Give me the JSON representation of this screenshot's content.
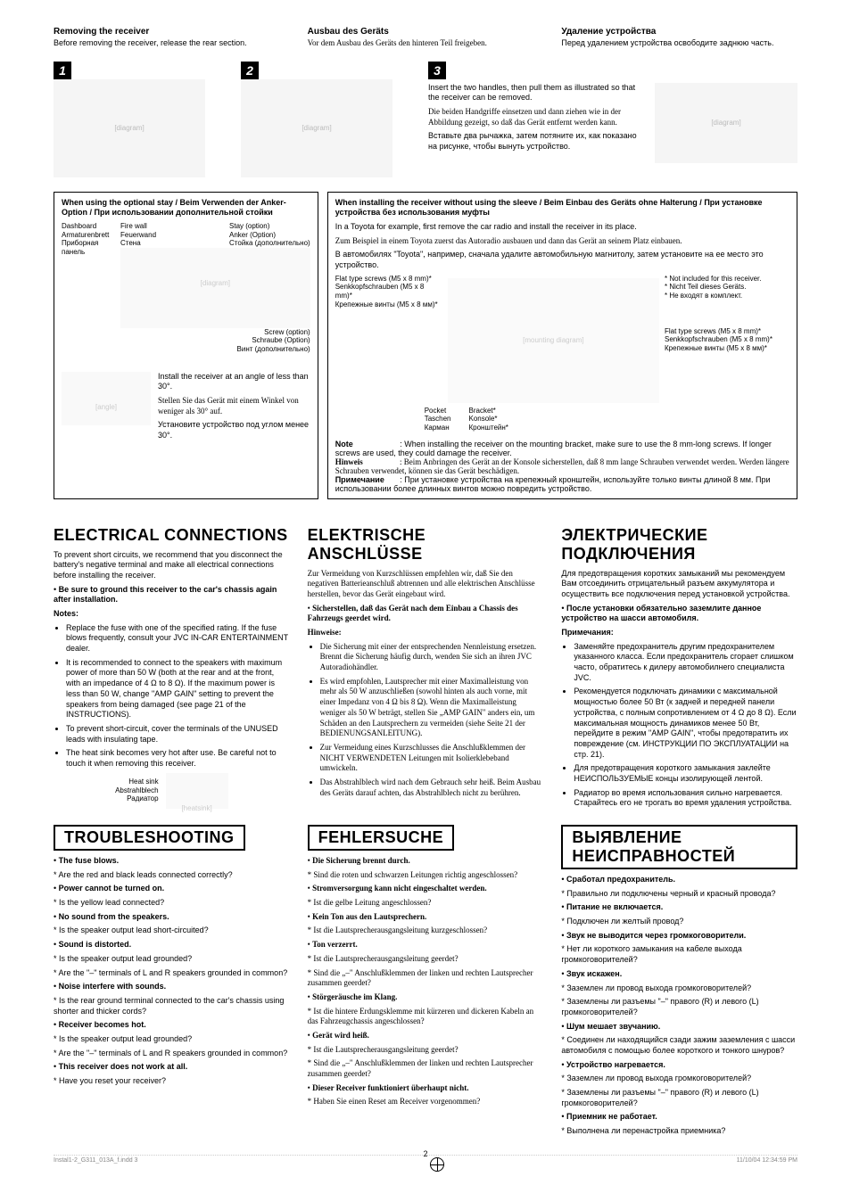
{
  "removing": {
    "en_title": "Removing the receiver",
    "en_body": "Before removing the receiver, release the rear section.",
    "de_title": "Ausbau des Geräts",
    "de_body": "Vor dem Ausbau des Geräts den hinteren Teil freigeben.",
    "ru_title": "Удаление устройства",
    "ru_body": "Перед удалением устройства освободите заднюю часть."
  },
  "step3": {
    "en": "Insert the two handles, then pull them as illustrated so that the receiver can be removed.",
    "de": "Die beiden Handgriffe einsetzen und dann ziehen wie in der Abbildung gezeigt, so daß das Gerät entfernt werden kann.",
    "ru": "Вставьте два рычажка, затем потяните их, как показано на рисунке, чтобы вынуть устройство."
  },
  "panel_left": {
    "title_en": "When using the optional stay / Beim Verwenden der Anker-Option /",
    "title_ru": "При использовании дополнительной стойки",
    "callouts": {
      "firewall": "Fire wall\nFeuerwand\nСтена",
      "stay": "Stay (option)\nAnker (Option)\nСтойка (дополнительно)",
      "dashboard": "Dashboard\nArmaturenbrett\nПриборная панель",
      "screw": "Screw (option)\nSchraube (Option)\nВинт (дополнительно)"
    },
    "angle_en": "Install the receiver at an angle of less than 30°.",
    "angle_de": "Stellen Sie das Gerät mit einem Winkel von weniger als 30° auf.",
    "angle_ru": "Установите устройство под углом менее 30°."
  },
  "panel_right": {
    "title_en": "When installing the receiver without using the sleeve / Beim Einbau des Geräts ohne Halterung /",
    "title_ru": "При установке устройства без использования муфты",
    "toyota_en": "In a Toyota for example, first remove the car radio and install the receiver in its place.",
    "toyota_de": "Zum Beispiel in einem Toyota zuerst das Autoradio ausbauen und dann das Gerät an seinem Platz einbauen.",
    "toyota_ru": "В автомобилях \"Toyota\", например, сначала удалите автомобильную магнитолу, затем установите на ее место это устройство.",
    "screws": "Flat type screws (M5 x 8 mm)*\nSenkkopfschrauben (M5 x 8 mm)*\nКрепежные винты (M5 x 8 мм)*",
    "not_included": "* Not included for this receiver.\n* Nicht Teil dieses Geräts.\n* Не входят в комплект.",
    "bracket": "Bracket*\nKonsole*\nКронштейн*",
    "pocket": "Pocket\nTaschen\nКарман",
    "note_label": "Note",
    "hinweis_label": "Hinweis",
    "prim_label": "Примечание",
    "note_en": "When installing the receiver on the mounting bracket, make sure to use the 8 mm-long screws. If longer screws are used, they could damage the receiver.",
    "note_de": "Beim Anbringen des Gerät an der Konsole sicherstellen, daß 8 mm lange Schrauben verwendet werden. Werden längere Schrauben verwendet, können sie das Gerät beschädigen.",
    "note_ru": "При установке устройства на крепежный кронштейн, используйте только винты длиной 8 мм. При использовании более длинных винтов можно повредить устройство."
  },
  "electrical": {
    "en_title": "ELECTRICAL CONNECTIONS",
    "de_title": "ELEKTRISCHE ANSCHLÜSSE",
    "ru_title": "ЭЛЕКТРИЧЕСКИЕ ПОДКЛЮЧЕНИЯ",
    "en_intro": "To prevent short circuits, we recommend that you disconnect the battery's negative terminal and make all electrical connections before installing the receiver.",
    "en_ground": "Be sure to ground this receiver to the car's chassis again after installation.",
    "en_notes_label": "Notes:",
    "en_notes": [
      "Replace the fuse with one of the specified rating. If the fuse blows frequently, consult your JVC IN-CAR ENTERTAINMENT dealer.",
      "It is recommended to connect to the speakers with maximum power of more than 50 W (both at the rear and at the front, with an impedance of 4 Ω to 8 Ω). If the maximum power is less than 50 W, change \"AMP GAIN\" setting to prevent the speakers from being damaged (see page 21 of the INSTRUCTIONS).",
      "To prevent short-circuit, cover the terminals of the UNUSED leads with insulating tape.",
      "The heat sink becomes very hot after use. Be careful not to touch it when removing this receiver."
    ],
    "heatsink": "Heat sink\nAbstrahlblech\nРадиатор",
    "de_intro": "Zur Vermeidung von Kurzschlüssen empfehlen wir, daß Sie den negativen Batterieanschluß abtrennen und alle elektrischen Anschlüsse herstellen, bevor das Gerät eingebaut wird.",
    "de_ground": "Sicherstellen, daß das Gerät nach dem Einbau a Chassis des Fahrzeugs geerdet wird.",
    "de_notes_label": "Hinweise:",
    "de_notes": [
      "Die Sicherung mit einer der entsprechenden Nennleistung ersetzen. Brennt die Sicherung häufig durch, wenden Sie sich an ihren JVC Autoradiohändler.",
      "Es wird empfohlen, Lautsprecher mit einer Maximalleistung von mehr als 50 W anzuschließen (sowohl hinten als auch vorne, mit einer Impedanz von 4 Ω bis 8 Ω). Wenn die Maximalleistung weniger als 50 W beträgt, stellen Sie „AMP GAIN\" anders ein, um Schäden an den Lautsprechern zu vermeiden (siehe Seite 21 der BEDIENUNGSANLEITUNG).",
      "Zur Vermeidung eines Kurzschlusses die Anschlußklemmen der NICHT VERWENDETEN Leitungen mit Isolierklebeband umwickeln.",
      "Das Abstrahlblech wird nach dem Gebrauch sehr heiß. Beim Ausbau des Geräts darauf achten, das Abstrahlblech nicht zu berühren."
    ],
    "ru_intro": "Для предотвращения коротких замыканий мы рекомендуем Вам отсоединить отрицательный разъем аккумулятора и осуществить все подключения перед установкой устройства.",
    "ru_ground": "После установки обязательно заземлите данное устройство на шасси автомобиля.",
    "ru_notes_label": "Примечания:",
    "ru_notes": [
      "Заменяйте предохранитель другим предохранителем указанного класса. Если предохранитель сгорает слишком часто, обратитесь к дилеру автомобилнего специалиста JVC.",
      "Рекомендуется подключать динамики с максимальной мощностью более 50 Вт (к задней и передней панели устройства, с полным сопротивлением от 4 Ω до 8 Ω). Если максимальная мощность динамиков менее 50 Вт, перейдите в режим \"AMP GAIN\", чтобы предотвратить их повреждение (см. ИНСТРУКЦИИ ПО ЭКСПЛУАТАЦИИ на стр. 21).",
      "Для предотвращения короткого замыкания заклейте НЕИСПОЛЬЗУЕМЫЕ концы изолирующей лентой.",
      "Радиатор во время использования сильно нагревается. Старайтесь его не трогать во время удаления устройства."
    ]
  },
  "troubleshooting": {
    "en_title": "TROUBLESHOOTING",
    "de_title": "FEHLERSUCHE",
    "ru_title": "ВЫЯВЛЕНИЕ НЕИСПРАВНОСТЕЙ",
    "en": [
      {
        "q": "The fuse blows.",
        "a": "Are the red and black leads connected correctly?"
      },
      {
        "q": "Power cannot be turned on.",
        "a": "Is the yellow lead connected?"
      },
      {
        "q": "No sound from the speakers.",
        "a": "Is the speaker output lead short-circuited?"
      },
      {
        "q": "Sound is distorted.",
        "a": "Is the speaker output lead grounded?\nAre the \"–\" terminals of L and R speakers grounded in common?"
      },
      {
        "q": "Noise interfere with sounds.",
        "a": "Is the rear ground terminal connected to the car's chassis using shorter and thicker cords?"
      },
      {
        "q": "Receiver becomes hot.",
        "a": "Is the speaker output lead grounded?\nAre the \"–\" terminals of L and R speakers grounded in common?"
      },
      {
        "q": "This receiver does not work at all.",
        "a": "Have you reset your receiver?"
      }
    ],
    "de": [
      {
        "q": "Die Sicherung brennt durch.",
        "a": "Sind die roten und schwarzen Leitungen richtig angeschlossen?"
      },
      {
        "q": "Stromversorgung kann nicht eingeschaltet werden.",
        "a": "Ist die gelbe Leitung angeschlossen?"
      },
      {
        "q": "Kein Ton aus den Lautsprechern.",
        "a": "Ist die Lautsprecherausgangsleitung kurzgeschlossen?"
      },
      {
        "q": "Ton verzerrt.",
        "a": "Ist die Lautsprecherausgangsleitung geerdet?\nSind die „–\" Anschlußklemmen der linken und rechten Lautsprecher zusammen geerdet?"
      },
      {
        "q": "Störgeräusche im Klang.",
        "a": "Ist die hintere Erdungsklemme mit kürzeren und dickeren Kabeln an das Fahrzeugchassis angeschlossen?"
      },
      {
        "q": "Gerät wird heiß.",
        "a": "Ist die Lautsprecherausgangsleitung geerdet?\nSind die „–\" Anschlußklemmen der linken und rechten Lautsprecher zusammen geerdet?"
      },
      {
        "q": "Dieser Receiver funktioniert überhaupt nicht.",
        "a": "Haben Sie einen Reset am Receiver vorgenommen?"
      }
    ],
    "ru": [
      {
        "q": "Сработал предохранитель.",
        "a": "Правильно ли подключены черный и красный провода?"
      },
      {
        "q": "Питание не включается.",
        "a": "Подключен ли желтый провод?"
      },
      {
        "q": "Звук не выводится через громкоговорители.",
        "a": "Нет ли короткого замыкания на кабеле выхода громкоговорителей?"
      },
      {
        "q": "Звук искажен.",
        "a": "Заземлен ли провод выхода громкоговорителей?\nЗаземлены ли разъемы \"–\" правого (R) и левого (L) громкоговорителей?"
      },
      {
        "q": "Шум мешает звучанию.",
        "a": "Соединен ли находящийся сзади зажим заземления с шасси автомобиля с помощью более короткого и тонкого шнуров?"
      },
      {
        "q": "Устройство нагревается.",
        "a": "Заземлен ли провод выхода громкоговорителей?\nЗаземлены ли разъемы \"–\" правого (R) и левого (L) громкоговорителей?"
      },
      {
        "q": "Приемник не работает.",
        "a": "Выполнена ли перенастройка приемника?"
      }
    ]
  },
  "footer": {
    "file": "Instal1-2_G311_013A_f.indd   3",
    "date": "11/10/04   12:34:59 PM",
    "page": "2"
  }
}
